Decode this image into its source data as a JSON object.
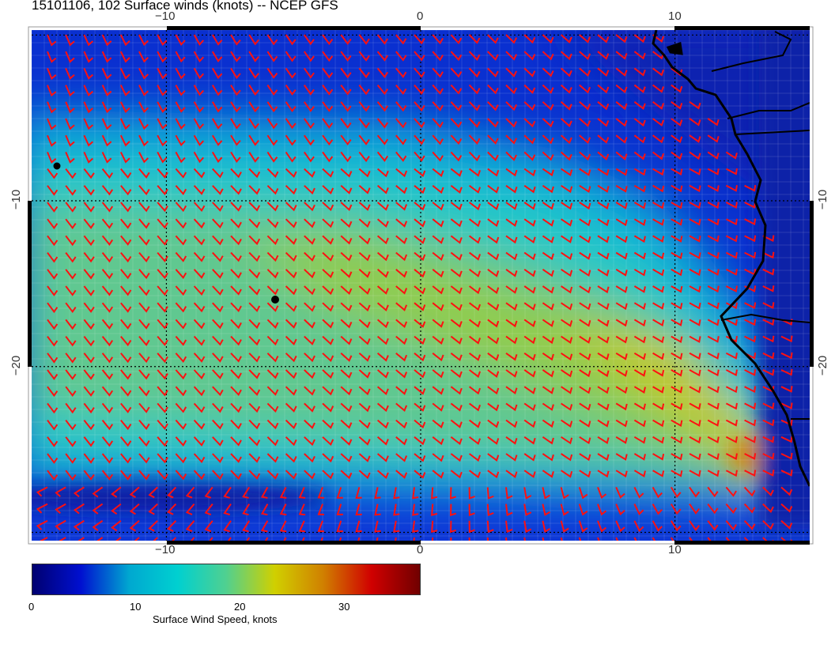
{
  "title": "15101106, 102 Surface winds (knots) -- NCEP GFS",
  "axes": {
    "top_lon_labels": [
      "−10",
      "0",
      "10"
    ],
    "bottom_lon_labels": [
      "−10",
      "0",
      "10"
    ],
    "left_lat_labels": [
      "−10",
      "−20"
    ],
    "right_lat_labels": [
      "−10",
      "−20"
    ],
    "lon_range": [
      -15.3,
      15.3
    ],
    "lat_range": [
      -30.5,
      0.3
    ],
    "graticule_lon": [
      -10,
      0,
      10
    ],
    "graticule_lat": [
      -10,
      -20
    ]
  },
  "colorbar": {
    "title": "Surface Wind Speed, knots",
    "tick_labels": [
      "0",
      "10",
      "20",
      "30"
    ],
    "range": [
      0,
      37
    ],
    "colors": [
      "#000070",
      "#0010d0",
      "#00a8d0",
      "#00d0d0",
      "#50d090",
      "#d0d000",
      "#d08000",
      "#d00000",
      "#700000"
    ]
  },
  "overlay": {
    "barb_color": "#ff0000",
    "coastline_color": "#000000"
  }
}
